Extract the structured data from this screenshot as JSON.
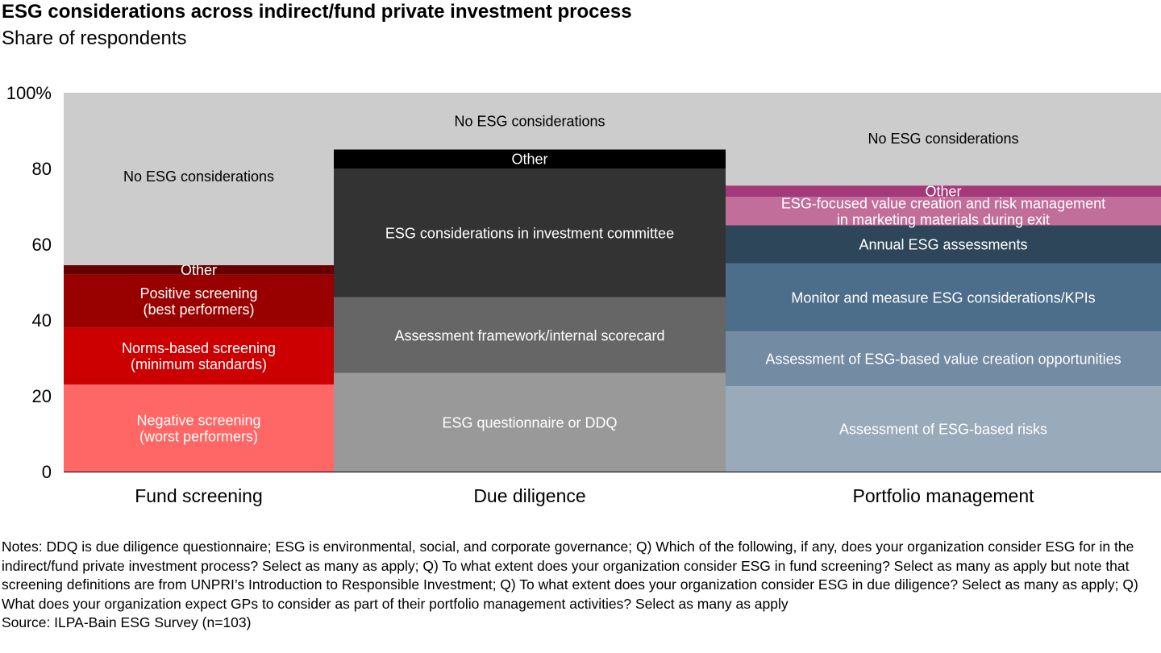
{
  "title": "ESG considerations across indirect/fund private investment process",
  "subtitle": "Share of respondents",
  "chart_data": {
    "type": "stacked-bar (marimekko-style)",
    "yaxis": {
      "ylim": [
        0,
        100
      ],
      "ticks": [
        {
          "value": 0,
          "label": "0"
        },
        {
          "value": 20,
          "label": "20"
        },
        {
          "value": 40,
          "label": "40"
        },
        {
          "value": 60,
          "label": "60"
        },
        {
          "value": 80,
          "label": "80"
        },
        {
          "value": 100,
          "label": "100%"
        }
      ]
    },
    "grid": false,
    "legend": "none (segments labeled inline)",
    "columns": [
      {
        "category": "Fund screening",
        "segments": [
          {
            "label": "Negative screening\n(worst performers)",
            "value": 23,
            "color": "#ff6666",
            "text_color": "#ffffff"
          },
          {
            "label": "Norms-based screening\n(minimum standards)",
            "value": 15,
            "color": "#cc0000",
            "text_color": "#ffffff"
          },
          {
            "label": "Positive screening\n(best performers)",
            "value": 14,
            "color": "#990000",
            "text_color": "#ffffff"
          },
          {
            "label": "Other",
            "value": 2.5,
            "color": "#660000",
            "text_color": "#ffffff"
          },
          {
            "label": "No ESG considerations",
            "value": 45.5,
            "color": "#cccccc",
            "text_color": "#000000",
            "label_at": 78
          }
        ]
      },
      {
        "category": "Due diligence",
        "segments": [
          {
            "label": "ESG questionnaire or DDQ",
            "value": 26,
            "color": "#999999",
            "text_color": "#ffffff"
          },
          {
            "label": "Assessment framework/internal scorecard",
            "value": 20,
            "color": "#666666",
            "text_color": "#ffffff"
          },
          {
            "label": "ESG considerations in investment committee",
            "value": 34,
            "color": "#333333",
            "text_color": "#ffffff"
          },
          {
            "label": "Other",
            "value": 5,
            "color": "#000000",
            "text_color": "#ffffff"
          },
          {
            "label": "No ESG considerations",
            "value": 15,
            "color": "#cccccc",
            "text_color": "#000000"
          }
        ]
      },
      {
        "category": "Portfolio management",
        "segments": [
          {
            "label": "Assessment of ESG-based risks",
            "value": 22.5,
            "color": "#99aabb",
            "text_color": "#ffffff"
          },
          {
            "label": "Assessment of ESG-based value creation opportunities",
            "value": 14.5,
            "color": "#738ca3",
            "text_color": "#ffffff"
          },
          {
            "label": "Monitor and measure ESG considerations/KPIs",
            "value": 18,
            "color": "#4d6e8a",
            "text_color": "#ffffff"
          },
          {
            "label": "Annual ESG assessments",
            "value": 10,
            "color": "#2e4659",
            "text_color": "#ffffff"
          },
          {
            "label": "ESG-focused value creation and risk management\nin marketing materials during exit",
            "value": 7.5,
            "color": "#c26e9b",
            "text_color": "#ffffff"
          },
          {
            "label": "Other",
            "value": 3,
            "color": "#a3387a",
            "text_color": "#ffffff"
          },
          {
            "label": "No ESG considerations",
            "value": 24.5,
            "color": "#cccccc",
            "text_color": "#000000",
            "label_at": 88
          }
        ]
      }
    ]
  },
  "notes": "Notes: DDQ is due diligence questionnaire; ESG is environmental, social, and corporate governance; Q) Which of the following, if any, does your organization consider ESG for in the indirect/fund private investment process? Select as many as apply; Q) To what extent does your organization consider ESG in fund screening? Select as many as apply but note that screening definitions are from UNPRI’s Introduction to Responsible Investment; Q) To what extent does your organization consider ESG in due diligence? Select as many as apply; Q) What does your organization expect GPs to consider as part of their portfolio management activities? Select as many as apply",
  "source": "Source: ILPA-Bain ESG Survey (n=103)"
}
